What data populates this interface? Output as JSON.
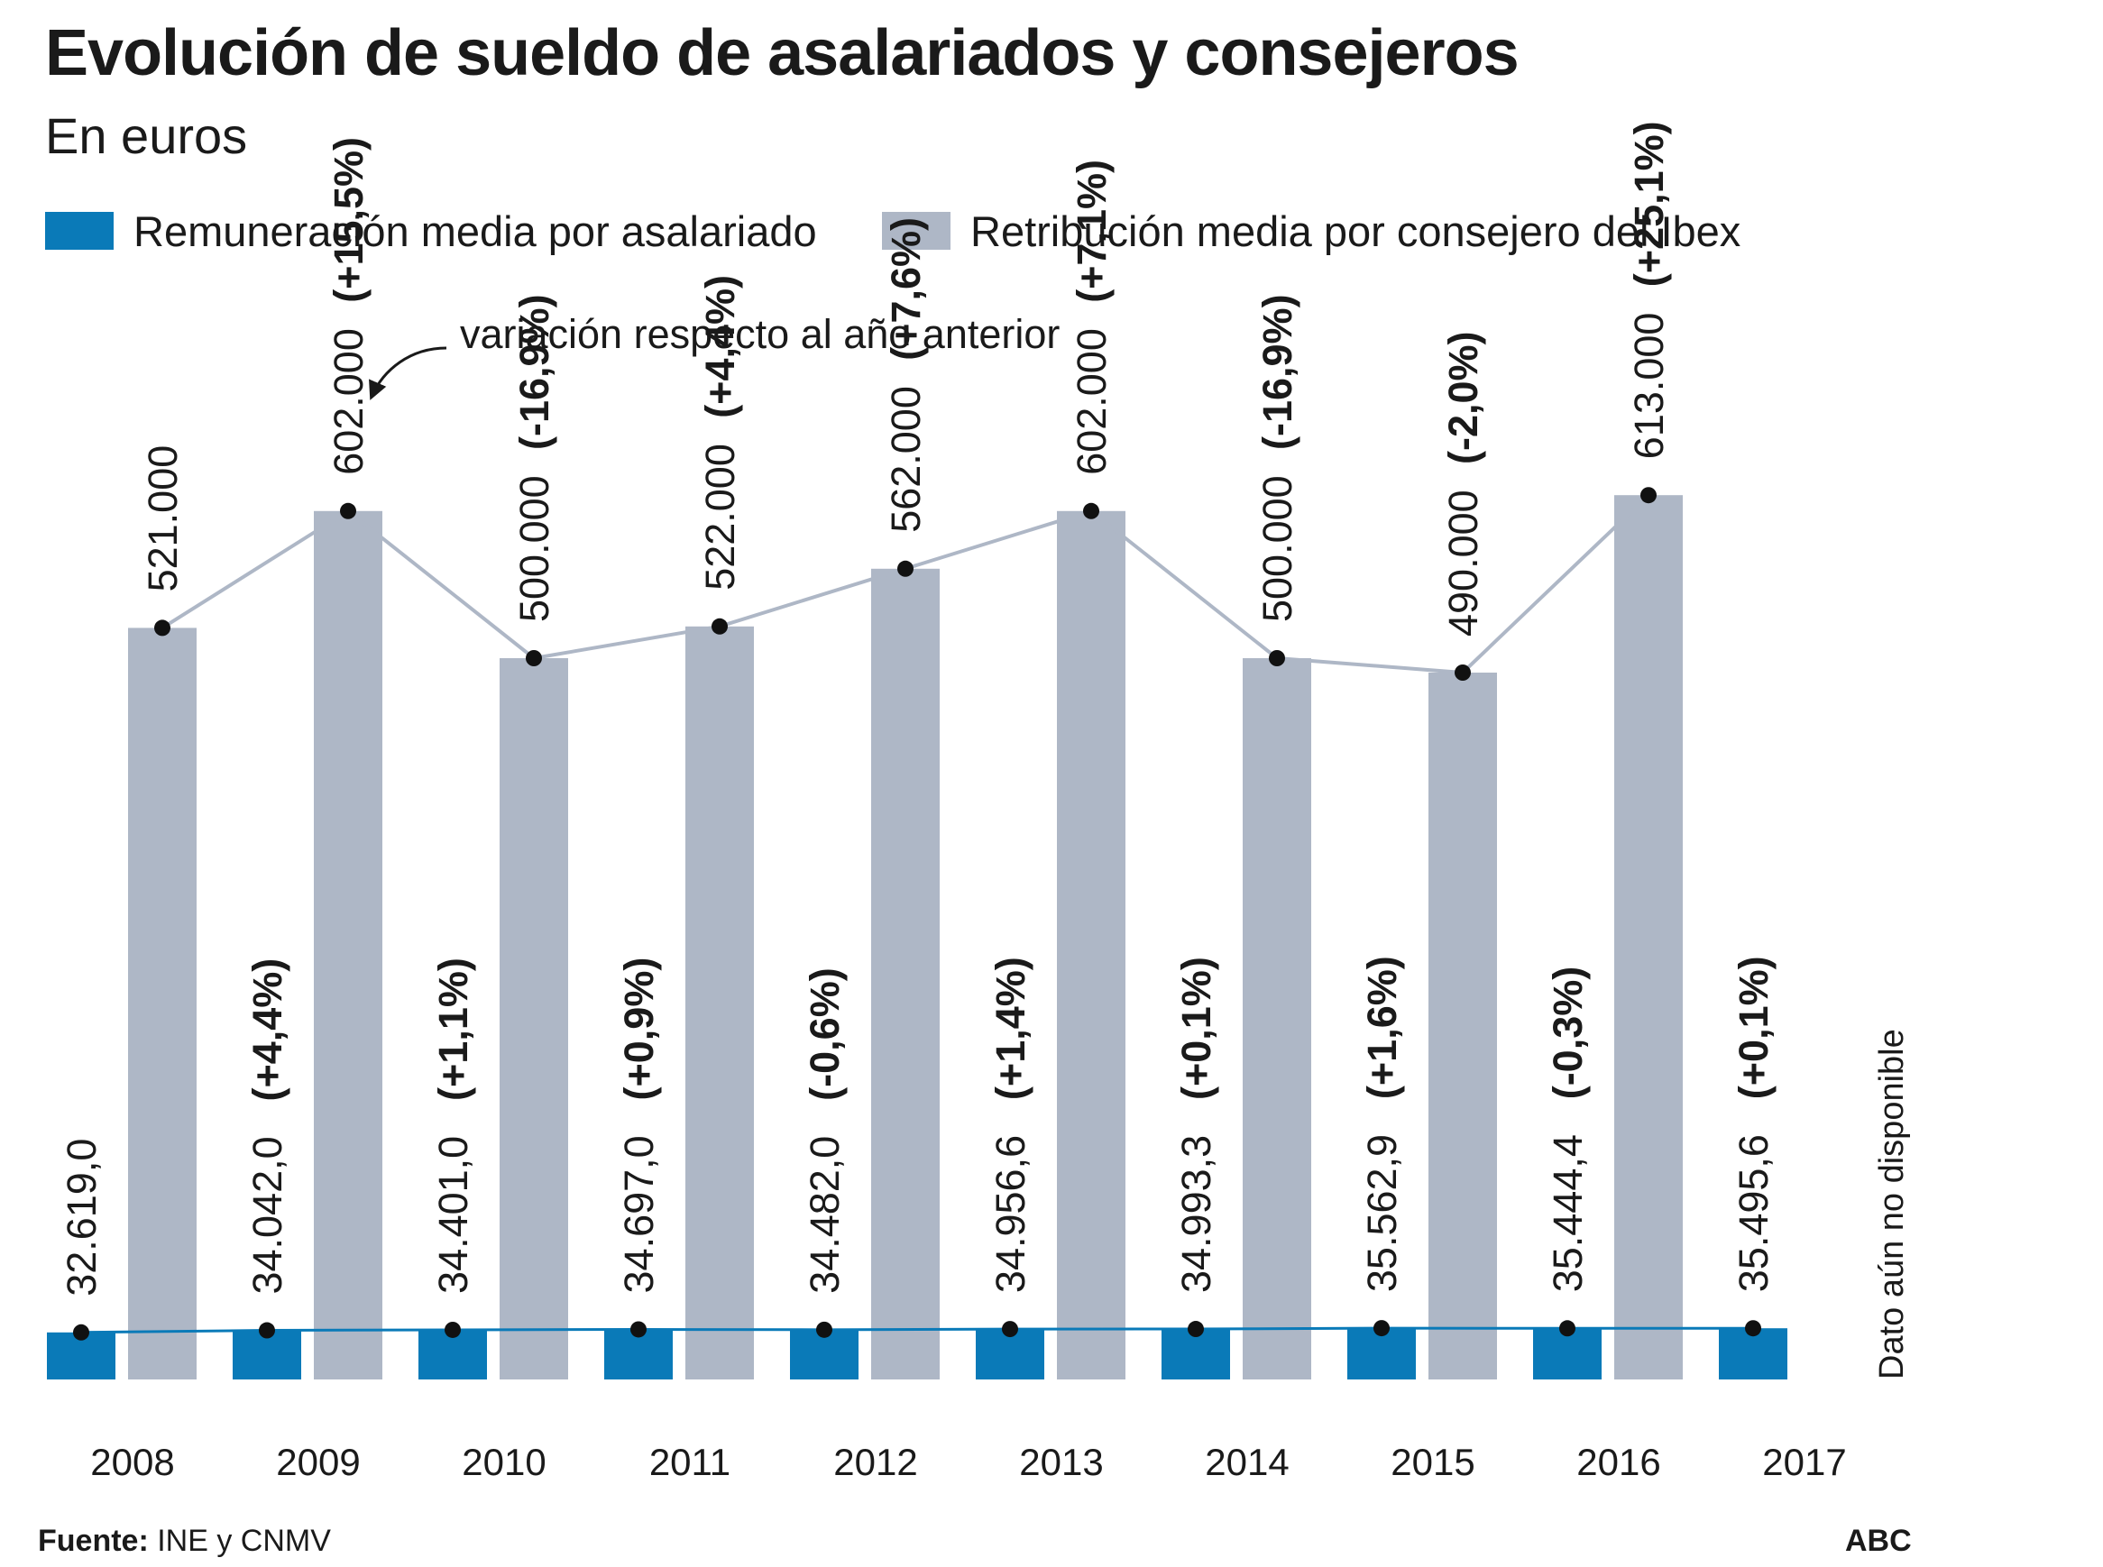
{
  "title": "Evolución de sueldo de asalariados y consejeros",
  "subtitle": "En euros",
  "legend": [
    {
      "label": "Remuneración media por asalariado",
      "color": "#0a7ab8"
    },
    {
      "label": "Retribución media por consejero del Ibex",
      "color": "#aeb7c6"
    }
  ],
  "annotation": "variación respecto al año anterior",
  "unavailable_note": "Dato aún no disponible",
  "source_label": "Fuente:",
  "source_text": "INE y CNMV",
  "brand": "ABC",
  "chart_data": {
    "type": "bar",
    "categories": [
      "2008",
      "2009",
      "2010",
      "2011",
      "2012",
      "2013",
      "2014",
      "2015",
      "2016",
      "2017"
    ],
    "ylim": [
      0,
      700000
    ],
    "series": [
      {
        "name": "Remuneración media por asalariado",
        "color": "#0a7ab8",
        "values": [
          32619.0,
          34042.0,
          34401.0,
          34697.0,
          34482.0,
          34956.6,
          34993.3,
          35562.9,
          35444.4,
          35495.6
        ],
        "value_labels": [
          "32.619,0",
          "34.042,0",
          "34.401,0",
          "34.697,0",
          "34.482,0",
          "34.956,6",
          "34.993,3",
          "35.562,9",
          "35.444,4",
          "35.495,6"
        ],
        "change_labels": [
          "",
          "(+4,4%)",
          "(+1,1%)",
          "(+0,9%)",
          "(-0,6%)",
          "(+1,4%)",
          "(+0,1%)",
          "(+1,6%)",
          "(-0,3%)",
          "(+0,1%)"
        ]
      },
      {
        "name": "Retribución media por consejero del Ibex",
        "color": "#aeb7c6",
        "values": [
          521000,
          602000,
          500000,
          522000,
          562000,
          602000,
          500000,
          490000,
          613000,
          null
        ],
        "value_labels": [
          "521.000",
          "602.000",
          "500.000",
          "522.000",
          "562.000",
          "602.000",
          "500.000",
          "490.000",
          "613.000",
          ""
        ],
        "change_labels": [
          "",
          "(+15,5%)",
          "(-16,9%)",
          "(+4,4%)",
          "(+7,6%)",
          "(+7,1%)",
          "(-16,9%)",
          "(-2,0%)",
          "(+25,1%)",
          ""
        ]
      }
    ]
  }
}
